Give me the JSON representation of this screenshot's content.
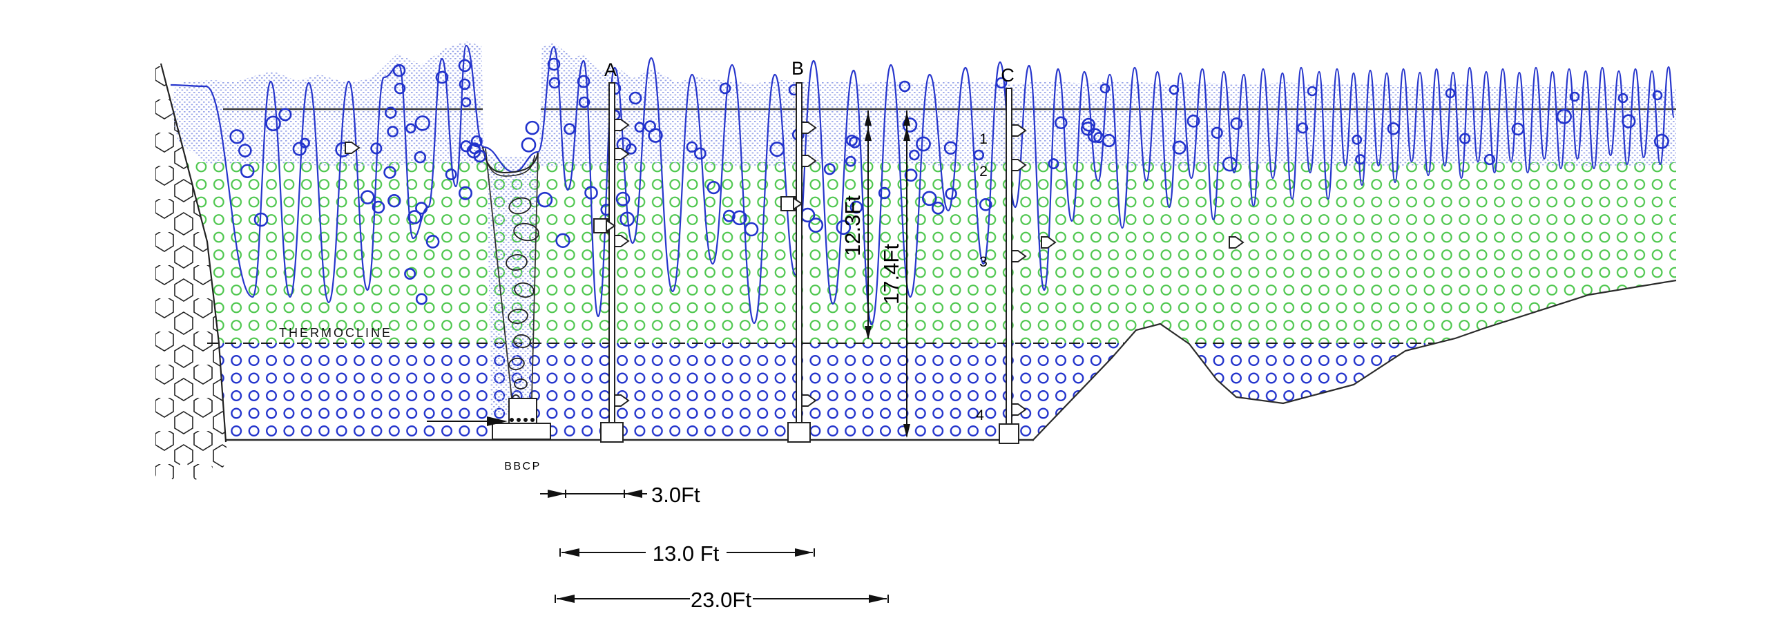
{
  "diagram": {
    "name": "pond-aeration-cross-section",
    "labels": {
      "thermocline": "THERMOCLINE",
      "bbcp": "BBCP",
      "probe_a": "A",
      "probe_b": "B",
      "probe_c": "C",
      "sensor_1": "1",
      "sensor_2": "2",
      "sensor_3": "3",
      "sensor_4": "4",
      "dim_3ft": "3.0Ft",
      "dim_13ft": "13.0 Ft",
      "dim_23ft": "23.0Ft",
      "dim_depth_thermocline": "12.3Ft",
      "dim_depth_bottom": "17.4Ft"
    },
    "colors": {
      "wave_blue": "#2736cc",
      "bubble_blue": "#2233cc",
      "epilimnion_green": "#4ec74e",
      "stipple_lavender": "#98a4e8",
      "line_black": "#2b2b2b"
    }
  }
}
